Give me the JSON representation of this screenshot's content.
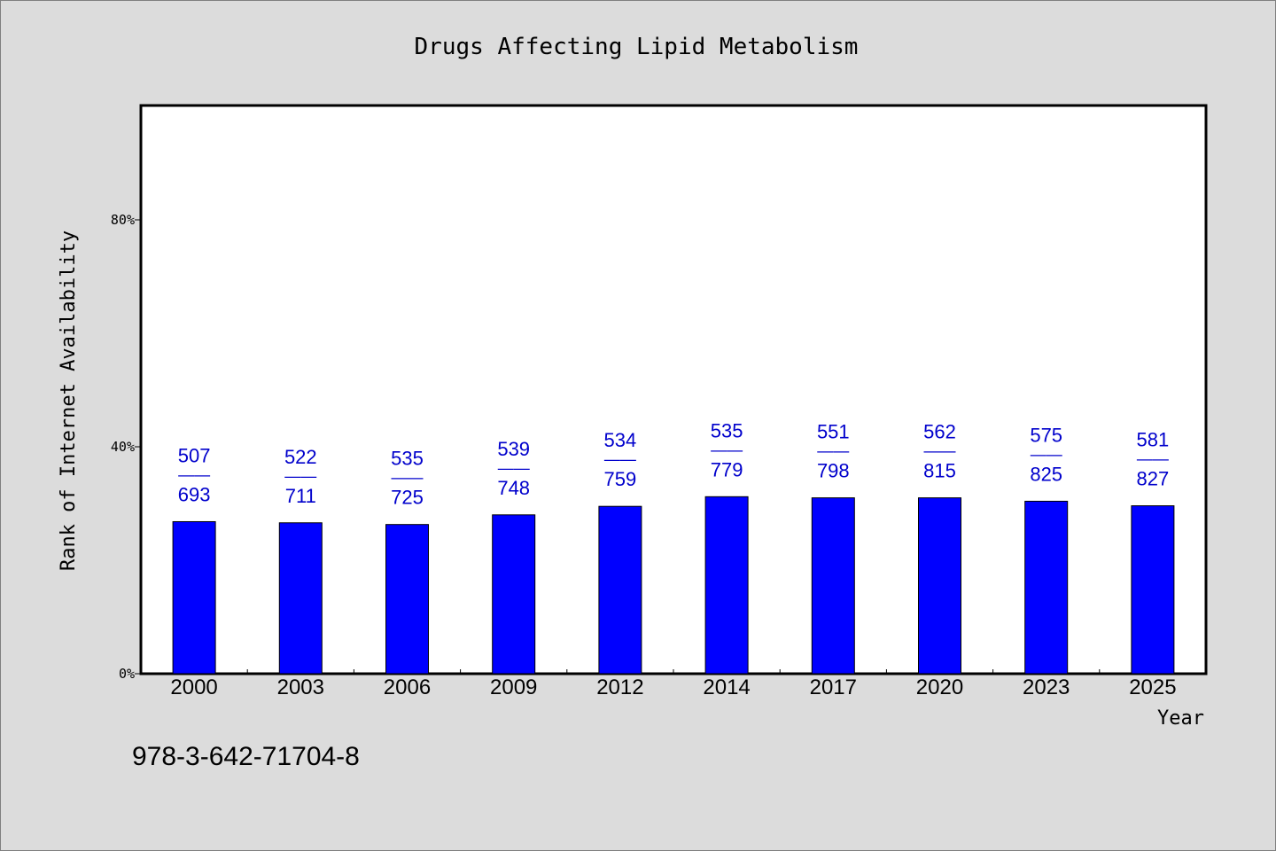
{
  "chart_data": {
    "type": "bar",
    "title": "Drugs Affecting Lipid Metabolism",
    "xlabel": "Year",
    "ylabel": "Rank of Internet Availability",
    "categories": [
      "2000",
      "2003",
      "2006",
      "2009",
      "2012",
      "2014",
      "2017",
      "2020",
      "2023",
      "2025"
    ],
    "values": [
      26.8,
      26.6,
      26.3,
      28.0,
      29.5,
      31.2,
      31.0,
      31.0,
      30.4,
      29.6
    ],
    "data_labels": [
      {
        "top": "507",
        "sep": "——",
        "bottom": "693"
      },
      {
        "top": "522",
        "sep": "——",
        "bottom": "711"
      },
      {
        "top": "535",
        "sep": "——",
        "bottom": "725"
      },
      {
        "top": "539",
        "sep": "——",
        "bottom": "748"
      },
      {
        "top": "534",
        "sep": "——",
        "bottom": "759"
      },
      {
        "top": "535",
        "sep": "——",
        "bottom": "779"
      },
      {
        "top": "551",
        "sep": "——",
        "bottom": "798"
      },
      {
        "top": "562",
        "sep": "——",
        "bottom": "815"
      },
      {
        "top": "575",
        "sep": "——",
        "bottom": "825"
      },
      {
        "top": "581",
        "sep": "——",
        "bottom": "827"
      }
    ],
    "ylim": [
      0,
      100
    ],
    "yticks": [
      0,
      40,
      80
    ],
    "ytick_labels": [
      "0%",
      "40%",
      "80%"
    ],
    "bar_color": "#0000ff",
    "label_color": "#0000cc",
    "grid": false,
    "legend": "none"
  },
  "footer": {
    "isbn": "978-3-642-71704-8"
  }
}
